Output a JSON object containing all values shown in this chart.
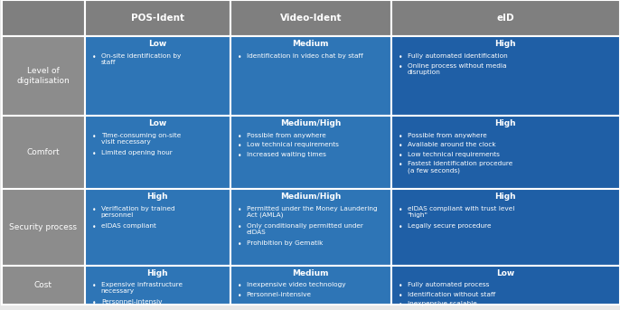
{
  "header_bg": "#7f7f7f",
  "row_label_bg": "#a0a0a0",
  "cell_blue_dark": "#1f5fa6",
  "cell_blue_light": "#2e75b6",
  "header_text_color": "#ffffff",
  "row_label_text_color": "#ffffff",
  "cell_text_color": "#ffffff",
  "level_text_color": "#ffffff",
  "outer_bg": "#e8e8e8",
  "col_headers": [
    "POS-Ident",
    "Video-Ident",
    "eID"
  ],
  "row_labels": [
    "Level of\ndigitalisation",
    "Comfort",
    "Security process",
    "Cost"
  ],
  "levels": [
    [
      "Low",
      "Medium",
      "High"
    ],
    [
      "Low",
      "Medium/High",
      "High"
    ],
    [
      "High",
      "Medium/High",
      "High"
    ],
    [
      "High",
      "Medium",
      "Low"
    ]
  ],
  "bullets": [
    [
      [
        "On-site identification by\nstaff"
      ],
      [
        "Identification in video chat by staff"
      ],
      [
        "Fully automated identification",
        "Online process without media\ndisruption"
      ]
    ],
    [
      [
        "Time-consuming on-site\nvisit necessary",
        "Limited opening hour"
      ],
      [
        "Possible from anywhere",
        "Low technical requirements",
        "Increased waiting times"
      ],
      [
        "Possible from anywhere",
        "Available around the clock",
        "Low technical requirements",
        "Fastest identification procedure\n(a few seconds)"
      ]
    ],
    [
      [
        "Verification by trained\npersonnel",
        "eIDAS compliant"
      ],
      [
        "Permitted under the Money Laundering\nAct (AMLA)",
        "Only conditionally permitted under\neIDAS",
        "Prohibition by Gematik"
      ],
      [
        "eIDAS compliant with trust level\n\"high\"",
        "Legally secure procedure"
      ]
    ],
    [
      [
        "Expensive infrastructure\nnecessary",
        "Personnel-intensiv"
      ],
      [
        "Inexpensive video technology",
        "Personnel-intensive"
      ],
      [
        "Fully automated process",
        "Identification without staff",
        "Inexpensive scalable"
      ]
    ]
  ]
}
